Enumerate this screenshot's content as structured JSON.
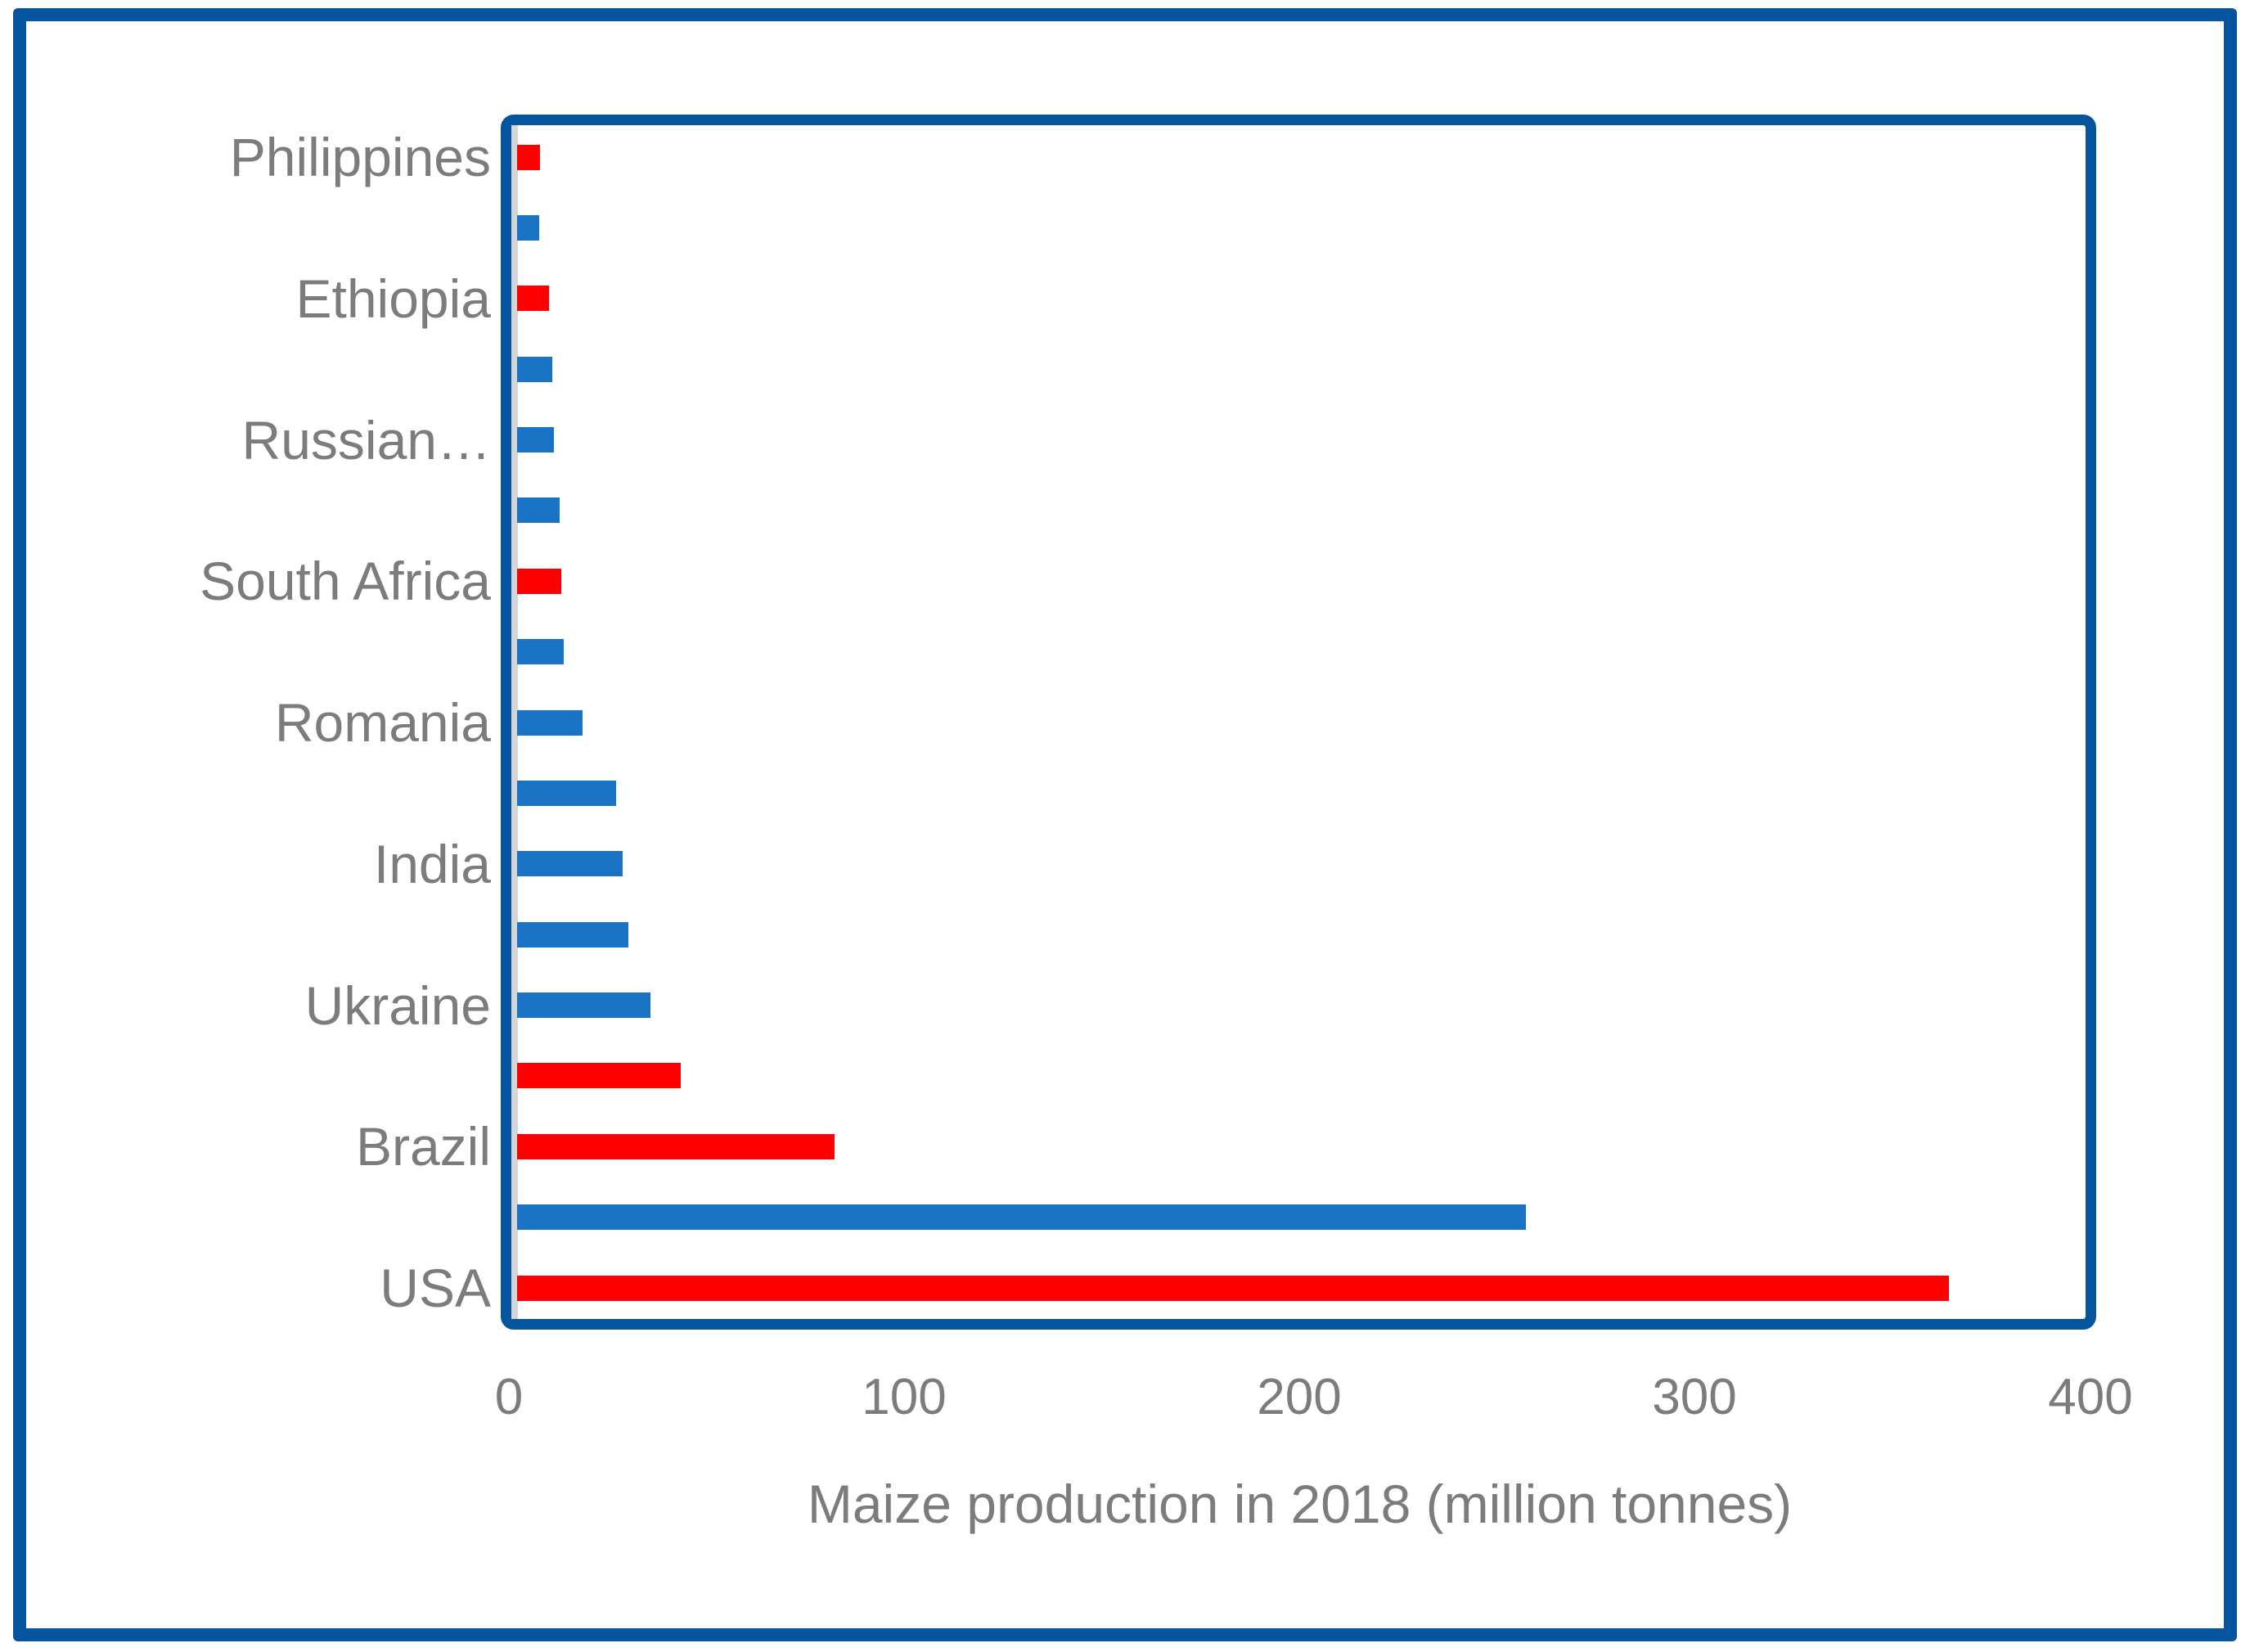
{
  "chart_data": {
    "type": "bar",
    "orientation": "horizontal",
    "title": "",
    "xlabel": "Maize production in 2018 (million tonnes)",
    "ylabel": "",
    "xlim": [
      0,
      400
    ],
    "x_ticks": [
      "0",
      "100",
      "200",
      "300",
      "400"
    ],
    "grid": "off",
    "legend": "none",
    "categories": [
      "Philippines",
      "",
      "Ethiopia",
      "",
      "Russian…",
      "",
      "South Africa",
      "",
      "Romania",
      "",
      "India",
      "",
      "Ukraine",
      "",
      "Brazil",
      "",
      "USA"
    ],
    "series": [
      {
        "name": "Maize production 2018",
        "bars": [
          {
            "label": "Philippines",
            "value": 8.0,
            "color": "red"
          },
          {
            "label": "",
            "value": 7.8,
            "color": "blue"
          },
          {
            "label": "Ethiopia",
            "value": 10.3,
            "color": "red"
          },
          {
            "label": "",
            "value": 11.1,
            "color": "blue"
          },
          {
            "label": "Russian…",
            "value": 11.5,
            "color": "blue"
          },
          {
            "label": "",
            "value": 12.9,
            "color": "blue"
          },
          {
            "label": "South Africa",
            "value": 13.4,
            "color": "red"
          },
          {
            "label": "",
            "value": 13.9,
            "color": "blue"
          },
          {
            "label": "Romania",
            "value": 18.8,
            "color": "blue"
          },
          {
            "label": "",
            "value": 27.3,
            "color": "blue"
          },
          {
            "label": "India",
            "value": 28.9,
            "color": "blue"
          },
          {
            "label": "",
            "value": 30.3,
            "color": "blue"
          },
          {
            "label": "Ukraine",
            "value": 35.8,
            "color": "blue"
          },
          {
            "label": "",
            "value": 43.6,
            "color": "red"
          },
          {
            "label": "Brazil",
            "value": 82.5,
            "color": "red"
          },
          {
            "label": "",
            "value": 257.4,
            "color": "blue"
          },
          {
            "label": "USA",
            "value": 364.4,
            "color": "red"
          }
        ]
      }
    ],
    "palette": {
      "red": "#FF0000",
      "blue": "#1A73C5"
    },
    "frame_color": "#04549E",
    "axis_line_color": "#D6D6D6",
    "text_color": "#7C7C7C",
    "background": "#FFFFFF"
  }
}
